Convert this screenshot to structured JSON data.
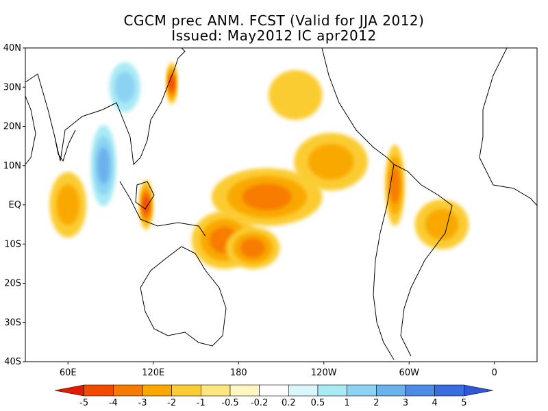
{
  "title": {
    "line1": "CGCM prec ANM. FCST  (Valid for JJA 2012)",
    "line2": "Issued:  May2012 IC apr2012"
  },
  "axes": {
    "lat_labels": [
      "40N",
      "30N",
      "20N",
      "10N",
      "EQ",
      "10S",
      "20S",
      "30S",
      "40S"
    ],
    "lon_labels": [
      "60E",
      "120E",
      "180",
      "120W",
      "60W",
      "0"
    ]
  },
  "colorbar": {
    "labels": [
      "-5",
      "-4",
      "-3",
      "-2",
      "-1",
      "-0.5",
      "-0.2",
      "0.2",
      "0.5",
      "1",
      "2",
      "3",
      "4",
      "5"
    ],
    "colors": [
      "#e41a00",
      "#f44a00",
      "#f77b00",
      "#f9a800",
      "#fbcc33",
      "#fde67f",
      "#fff6c2",
      "#ffffff",
      "#d9f7fb",
      "#a9eaf4",
      "#8cd2f2",
      "#6ab2ec",
      "#4c8ce6",
      "#3a6ee0",
      "#2f55d8"
    ]
  },
  "anomalies": [
    {
      "lon": 200,
      "lat": 2,
      "rx": 38,
      "ry": 7,
      "level": -3,
      "label": "central-pacific-dry"
    },
    {
      "lon": 170,
      "lat": -9,
      "rx": 22,
      "ry": 7,
      "level": -3,
      "label": "coral-sea-dry"
    },
    {
      "lon": 190,
      "lat": -11,
      "rx": 18,
      "ry": 5,
      "level": -3,
      "label": "south-pacific-wet"
    },
    {
      "lon": 115,
      "lat": 0,
      "rx": 4,
      "ry": 6,
      "level": -4,
      "label": "borneo-wet"
    },
    {
      "lon": 133,
      "lat": 31,
      "rx": 3,
      "ry": 5,
      "level": -4,
      "label": "japan-wet"
    },
    {
      "lon": 245,
      "lat": 11,
      "rx": 25,
      "ry": 7,
      "level": -2,
      "label": "east-pacific-wet"
    },
    {
      "lon": 323,
      "lat": -5,
      "rx": 18,
      "ry": 6,
      "level": -2,
      "label": "atlantic-wet"
    },
    {
      "lon": 290,
      "lat": 5,
      "rx": 6,
      "ry": 10,
      "level": -3,
      "label": "south-america-wet"
    },
    {
      "lon": 85,
      "lat": 10,
      "rx": 8,
      "ry": 10,
      "level": 3,
      "label": "bay-of-bengal-dry"
    },
    {
      "lon": 60,
      "lat": 0,
      "rx": 12,
      "ry": 8,
      "level": -2,
      "label": "indian-ocean-wet"
    },
    {
      "lon": 100,
      "lat": 30,
      "rx": 10,
      "ry": 6,
      "level": 2,
      "label": "china-dry"
    },
    {
      "lon": 220,
      "lat": 28,
      "rx": 18,
      "ry": 6,
      "level": -1,
      "label": "north-pacific-wet"
    }
  ]
}
